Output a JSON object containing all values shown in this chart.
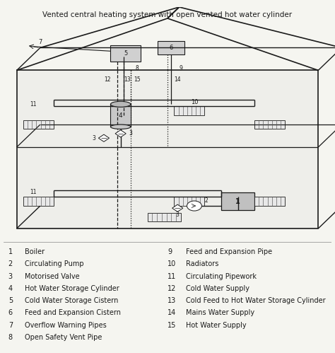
{
  "title": "Vented central heating system with open vented hot water cylinder",
  "title_fontsize": 7.5,
  "bg_color": "#f5f5f0",
  "line_color": "#1a1a1a",
  "legend_left": [
    [
      "1",
      "Boiler"
    ],
    [
      "2",
      "Circulating Pump"
    ],
    [
      "3",
      "Motorised Valve"
    ],
    [
      "4",
      "Hot Water Storage Cylinder"
    ],
    [
      "5",
      "Cold Water Storage Cistern"
    ],
    [
      "6",
      "Feed and Expansion Cistern"
    ],
    [
      "7",
      "Overflow Warning Pipes"
    ],
    [
      "8",
      "Open Safety Vent Pipe"
    ]
  ],
  "legend_right": [
    [
      "9",
      "Feed and Expansion Pipe"
    ],
    [
      "10",
      "Radiators"
    ],
    [
      "11",
      "Circulating Pipework"
    ],
    [
      "12",
      "Cold Water Supply"
    ],
    [
      "13",
      "Cold Feed to Hot Water Storage Cylinder"
    ],
    [
      "14",
      "Mains Water Supply"
    ],
    [
      "15",
      "Hot Water Supply"
    ]
  ],
  "legend_fontsize": 7.0,
  "legend_num_fontsize": 7.0
}
